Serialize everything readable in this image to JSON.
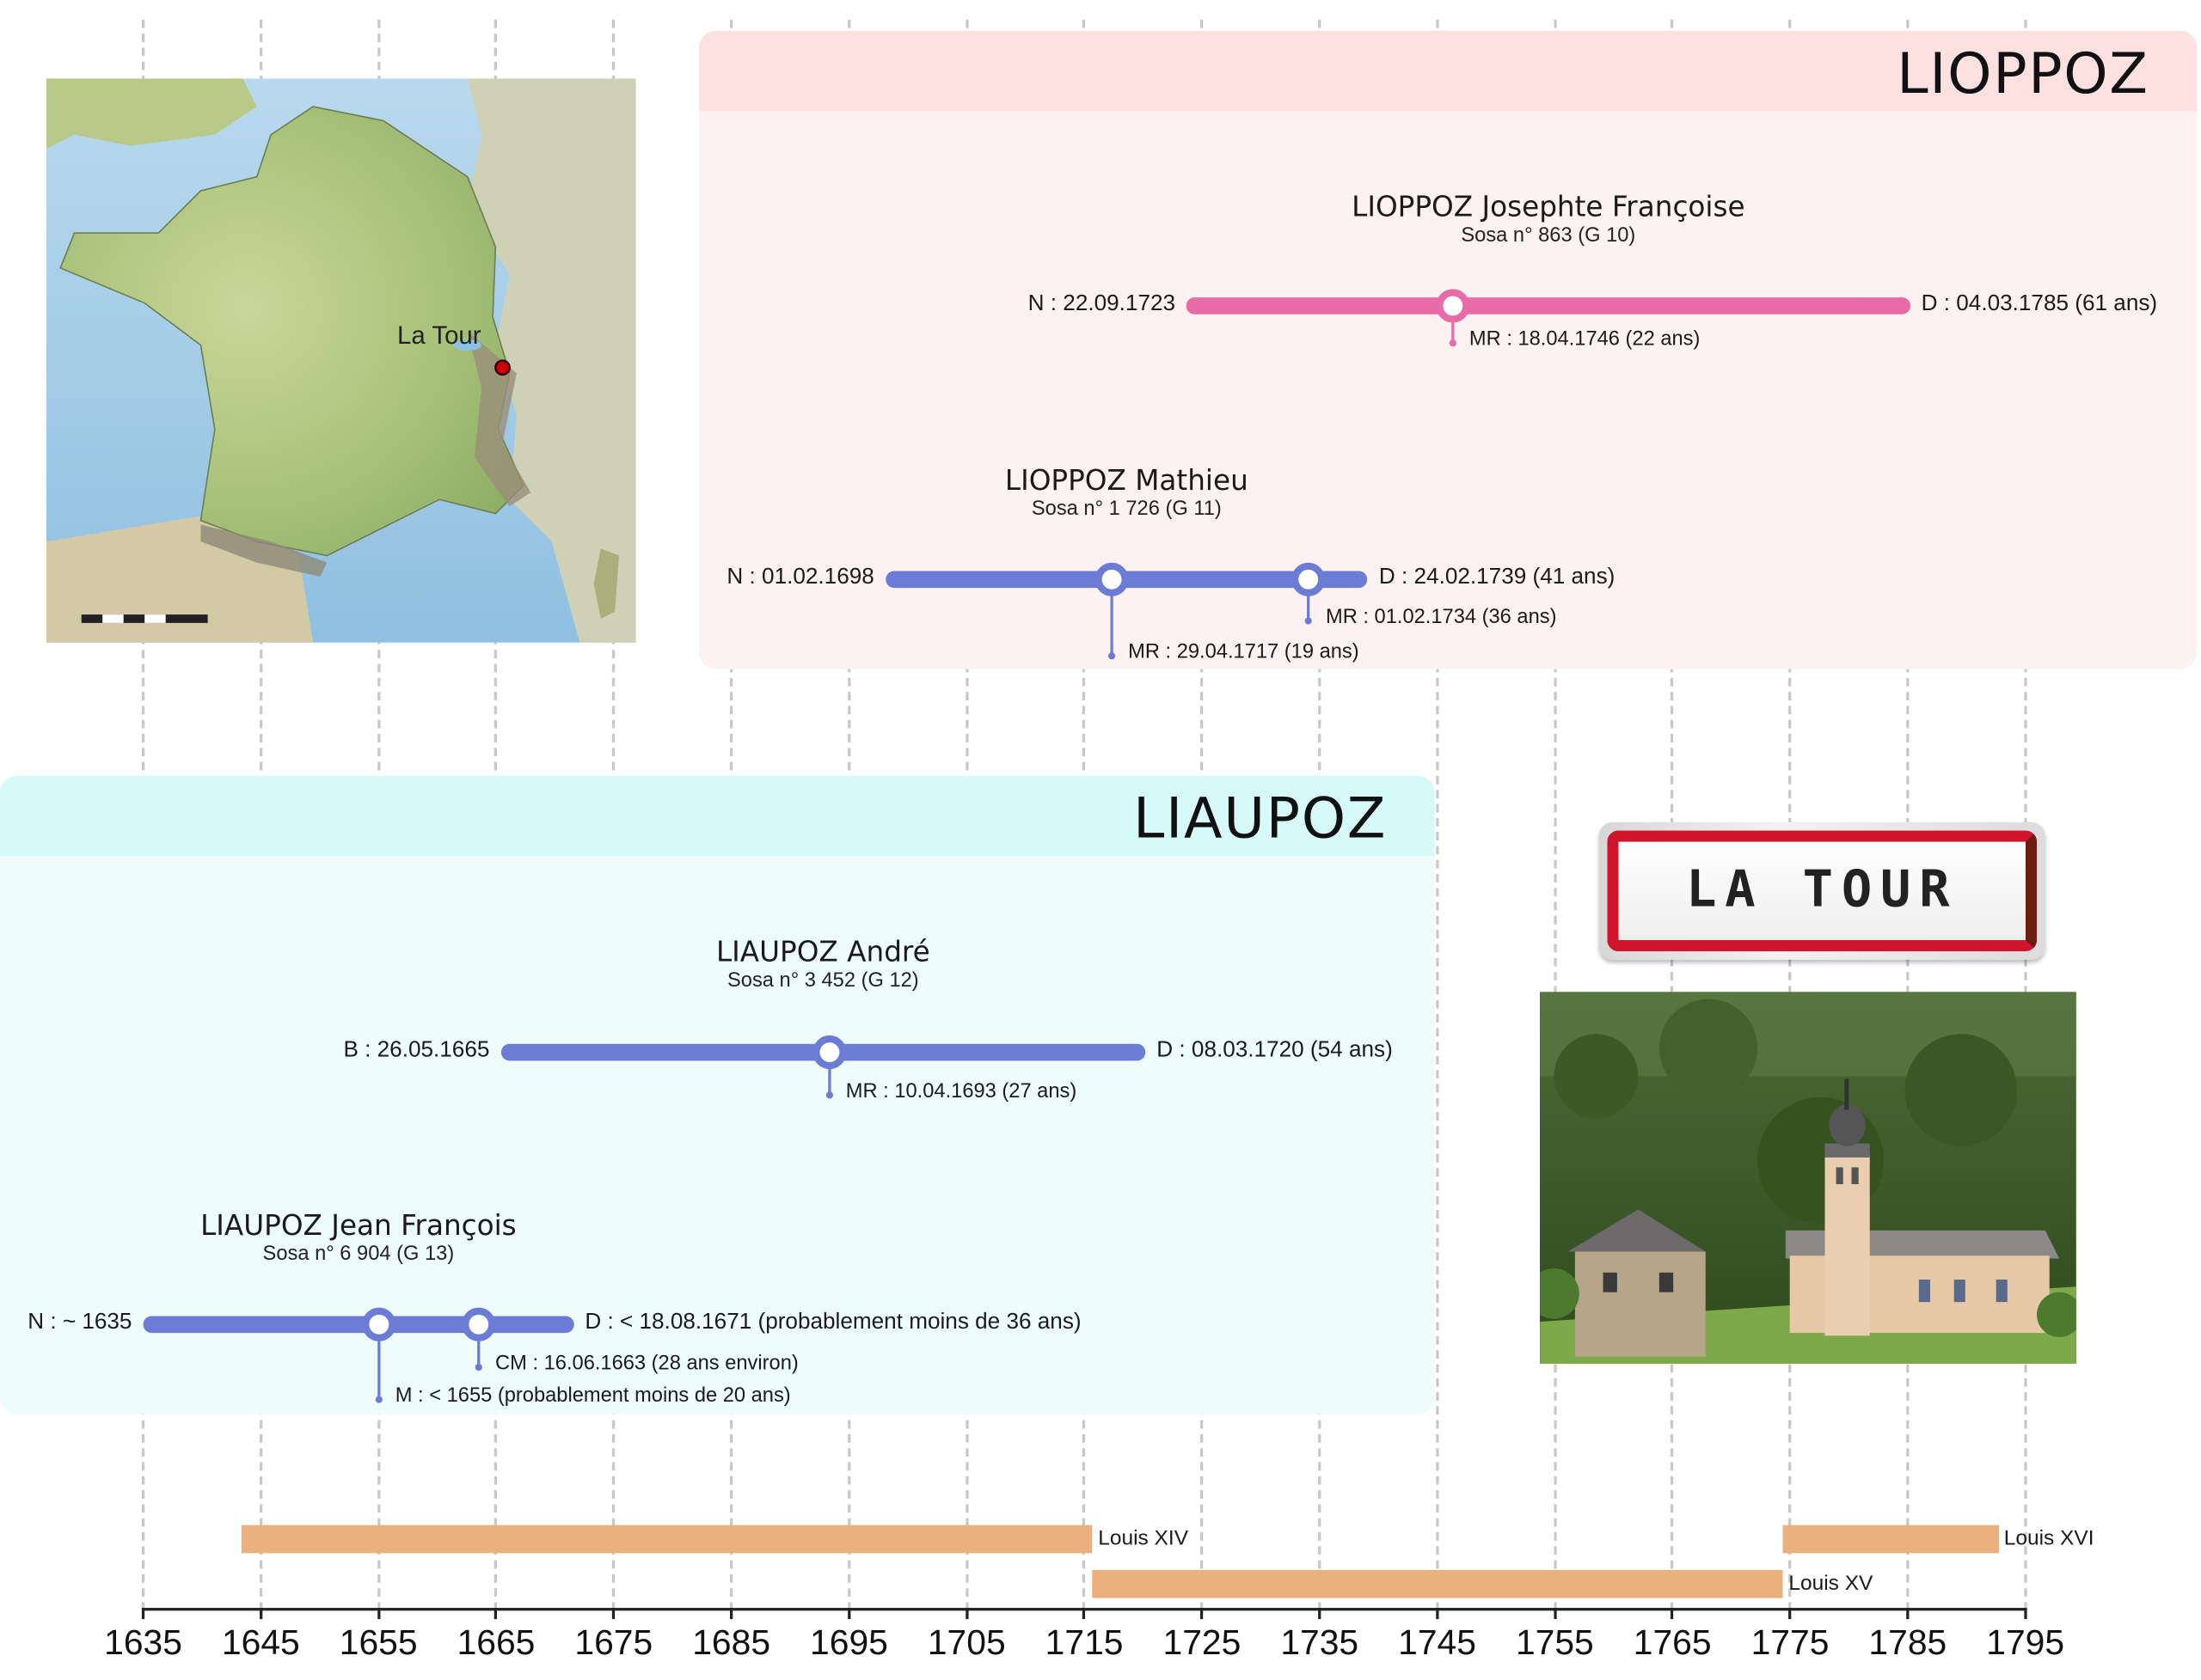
{
  "families": [
    {
      "name": "LIOPPOZ",
      "color": "#fde0e0",
      "body_color": "#fdf1f1",
      "persons": [
        {
          "name": "LIOPPOZ Josephte Françoise",
          "sosa": "Sosa n° 863 (G 10)",
          "start_label": "N : 22.09.1723",
          "end_label": "D : 04.03.1785 (61 ans)",
          "color": "#e86aa6",
          "start_year": 1723.7,
          "end_year": 1785.2,
          "events": [
            {
              "label": "MR : 18.04.1746 (22 ans)",
              "year": 1746.3
            }
          ]
        },
        {
          "name": "LIOPPOZ Mathieu",
          "sosa": "Sosa n° 1 726 (G 11)",
          "start_label": "N : 01.02.1698",
          "end_label": "D : 24.02.1739 (41 ans)",
          "color": "#6c7bd6",
          "start_year": 1698.1,
          "end_year": 1739.1,
          "events": [
            {
              "label": "MR : 29.04.1717 (19 ans)",
              "year": 1717.3
            },
            {
              "label": "MR : 01.02.1734 (36 ans)",
              "year": 1734.1
            }
          ]
        }
      ]
    },
    {
      "name": "LIAUPOZ",
      "color": "#d6fafa",
      "body_color": "#eefcfc",
      "persons": [
        {
          "name": "LIAUPOZ André",
          "sosa": "Sosa n° 3 452 (G 12)",
          "start_label": "B : 26.05.1665",
          "end_label": "D : 08.03.1720 (54 ans)",
          "color": "#6c7bd6",
          "start_year": 1665.4,
          "end_year": 1720.2,
          "events": [
            {
              "label": "MR : 10.04.1693 (27 ans)",
              "year": 1693.3
            }
          ]
        },
        {
          "name": "LIAUPOZ Jean François",
          "sosa": "Sosa n° 6 904 (G 13)",
          "start_label": "N : ~ 1635",
          "end_label": "D : < 18.08.1671 (probablement moins de 36 ans)",
          "color": "#6c7bd6",
          "start_year": 1635,
          "end_year": 1671.6,
          "events": [
            {
              "label": "M : < 1655 (probablement moins de 20 ans)",
              "year": 1655
            },
            {
              "label": "CM : 16.06.1663 (28 ans environ)",
              "year": 1663.5
            }
          ]
        }
      ]
    }
  ],
  "reigns": [
    {
      "label": "Louis XIV",
      "start": 1643.4,
      "end": 1715.7
    },
    {
      "label": "Louis XV",
      "start": 1715.7,
      "end": 1774.4
    },
    {
      "label": "Louis XVI",
      "start": 1774.4,
      "end": 1792.7
    }
  ],
  "axis": {
    "ticks": [
      "1635",
      "1645",
      "1655",
      "1665",
      "1675",
      "1685",
      "1695",
      "1705",
      "1715",
      "1725",
      "1735",
      "1745",
      "1755",
      "1765",
      "1775",
      "1785",
      "1795"
    ]
  },
  "map": {
    "place_label": "La Tour"
  },
  "sign": {
    "text": "LA TOUR"
  }
}
